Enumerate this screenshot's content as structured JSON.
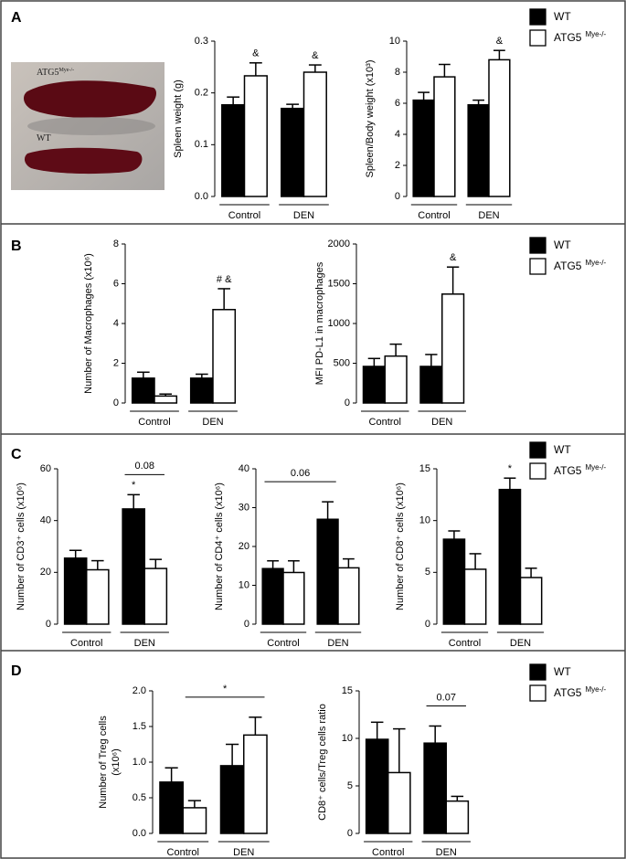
{
  "panels": [
    {
      "label": "A",
      "legend": [
        {
          "name": "WT",
          "color": "#000000"
        },
        {
          "name": "ATG5",
          "sup": "Mye-/-",
          "color": "#ffffff"
        }
      ],
      "photo": {
        "labels": [
          {
            "text": "ATG5",
            "sup": "Mye-/-"
          },
          {
            "text": "WT"
          }
        ]
      }
    },
    {
      "label": "B",
      "legend": [
        {
          "name": "WT",
          "color": "#000000"
        },
        {
          "name": "ATG5",
          "sup": "Mye-/-",
          "color": "#ffffff"
        }
      ]
    },
    {
      "label": "C",
      "legend": [
        {
          "name": "WT",
          "color": "#000000"
        },
        {
          "name": "ATG5",
          "sup": "Mye-/-",
          "color": "#ffffff"
        }
      ]
    },
    {
      "label": "D",
      "legend": [
        {
          "name": "WT",
          "color": "#000000"
        },
        {
          "name": "ATG5",
          "sup": "Mye-/-",
          "color": "#ffffff"
        }
      ]
    }
  ],
  "chart_data": [
    {
      "type": "bar",
      "ylabel": [
        "Spleen weight (g)"
      ],
      "categories": [
        "Control",
        "DEN"
      ],
      "ylim": [
        0,
        0.3
      ],
      "yticks": [
        {
          "value": 0,
          "label": "0.0"
        },
        0.1,
        0.2,
        0.3
      ],
      "series": [
        {
          "color": "#000000",
          "values": [
            0.177,
            0.17
          ],
          "errors": [
            0.015,
            0.008
          ]
        },
        {
          "color": "#ffffff",
          "values": [
            0.233,
            0.24
          ],
          "errors": [
            0.025,
            0.014
          ]
        }
      ],
      "annotations": [
        "&",
        "&"
      ]
    },
    {
      "type": "bar",
      "ylabel": [
        "Spleen/Body weight (x10³)"
      ],
      "categories": [
        "Control",
        "DEN"
      ],
      "ylim": [
        0,
        10
      ],
      "yticks": [
        0,
        2,
        4,
        6,
        8,
        10
      ],
      "series": [
        {
          "color": "#000000",
          "values": [
            6.2,
            5.9
          ],
          "errors": [
            0.5,
            0.3
          ]
        },
        {
          "color": "#ffffff",
          "values": [
            7.7,
            8.8
          ],
          "errors": [
            0.8,
            0.6
          ]
        }
      ],
      "annotations": [
        "&"
      ]
    },
    {
      "type": "bar",
      "ylabel": [
        "Number of Macrophages (x10⁶)"
      ],
      "categories": [
        "Control",
        "DEN"
      ],
      "ylim": [
        0,
        8
      ],
      "yticks": [
        0,
        2,
        4,
        6,
        8
      ],
      "series": [
        {
          "color": "#000000",
          "values": [
            1.25,
            1.25
          ],
          "errors": [
            0.3,
            0.2
          ]
        },
        {
          "color": "#ffffff",
          "values": [
            0.35,
            4.7
          ],
          "errors": [
            0.1,
            1.05
          ]
        }
      ],
      "annotations": [
        "# &"
      ]
    },
    {
      "type": "bar",
      "ylabel": [
        "MFI PD-L1 in macrophages"
      ],
      "categories": [
        "Control",
        "DEN"
      ],
      "ylim": [
        0,
        2000
      ],
      "yticks": [
        0,
        500,
        1000,
        1500,
        2000
      ],
      "series": [
        {
          "color": "#000000",
          "values": [
            460,
            460
          ],
          "errors": [
            100,
            150
          ]
        },
        {
          "color": "#ffffff",
          "values": [
            590,
            1370
          ],
          "errors": [
            150,
            340
          ]
        }
      ],
      "annotations": [
        "&"
      ]
    },
    {
      "type": "bar",
      "ylabel": [
        "Number of CD3⁺ cells (x10⁶)"
      ],
      "categories": [
        "Control",
        "DEN"
      ],
      "ylim": [
        0,
        60
      ],
      "yticks": [
        0,
        20,
        40,
        60
      ],
      "series": [
        {
          "color": "#000000",
          "values": [
            25.5,
            44.5
          ],
          "errors": [
            3,
            5.5
          ]
        },
        {
          "color": "#ffffff",
          "values": [
            21,
            21.5
          ],
          "errors": [
            3.5,
            3.5
          ]
        }
      ],
      "annotations": [
        "*",
        "0.08"
      ]
    },
    {
      "type": "bar",
      "ylabel": [
        "Number of CD4⁺ cells (x10⁶)"
      ],
      "categories": [
        "Control",
        "DEN"
      ],
      "ylim": [
        0,
        40
      ],
      "yticks": [
        0,
        10,
        20,
        30,
        40
      ],
      "series": [
        {
          "color": "#000000",
          "values": [
            14.3,
            27
          ],
          "errors": [
            2,
            4.5
          ]
        },
        {
          "color": "#ffffff",
          "values": [
            13.3,
            14.5
          ],
          "errors": [
            3,
            2.3
          ]
        }
      ],
      "annotations": [
        "0.06"
      ]
    },
    {
      "type": "bar",
      "ylabel": [
        "Number of CD8⁺ cells (x10⁶)"
      ],
      "categories": [
        "Control",
        "DEN"
      ],
      "ylim": [
        0,
        15
      ],
      "yticks": [
        0,
        5,
        10,
        15
      ],
      "series": [
        {
          "color": "#000000",
          "values": [
            8.2,
            13
          ],
          "errors": [
            0.8,
            1.1
          ]
        },
        {
          "color": "#ffffff",
          "values": [
            5.3,
            4.5
          ],
          "errors": [
            1.5,
            0.9
          ]
        }
      ],
      "annotations": [
        "*"
      ]
    },
    {
      "type": "bar",
      "ylabel": [
        "Number of Treg cells",
        "(x10⁶)"
      ],
      "categories": [
        "Control",
        "DEN"
      ],
      "ylim": [
        0,
        2
      ],
      "yticks": [
        {
          "value": 0,
          "label": "0.0"
        },
        0.5,
        {
          "value": 1,
          "label": "1.0"
        },
        1.5,
        {
          "value": 2,
          "label": "2.0"
        }
      ],
      "series": [
        {
          "color": "#000000",
          "values": [
            0.72,
            0.95
          ],
          "errors": [
            0.2,
            0.3
          ]
        },
        {
          "color": "#ffffff",
          "values": [
            0.36,
            1.38
          ],
          "errors": [
            0.1,
            0.25
          ]
        }
      ],
      "annotations": [
        "*"
      ]
    },
    {
      "type": "bar",
      "ylabel": [
        "CD8⁺ cells/Treg cells ratio"
      ],
      "categories": [
        "Control",
        "DEN"
      ],
      "ylim": [
        0,
        15
      ],
      "yticks": [
        0,
        5,
        10,
        15
      ],
      "series": [
        {
          "color": "#000000",
          "values": [
            9.9,
            9.5
          ],
          "errors": [
            1.8,
            1.8
          ]
        },
        {
          "color": "#ffffff",
          "values": [
            6.4,
            3.4
          ],
          "errors": [
            4.6,
            0.5
          ]
        }
      ],
      "annotations": [
        "0.07"
      ]
    }
  ]
}
